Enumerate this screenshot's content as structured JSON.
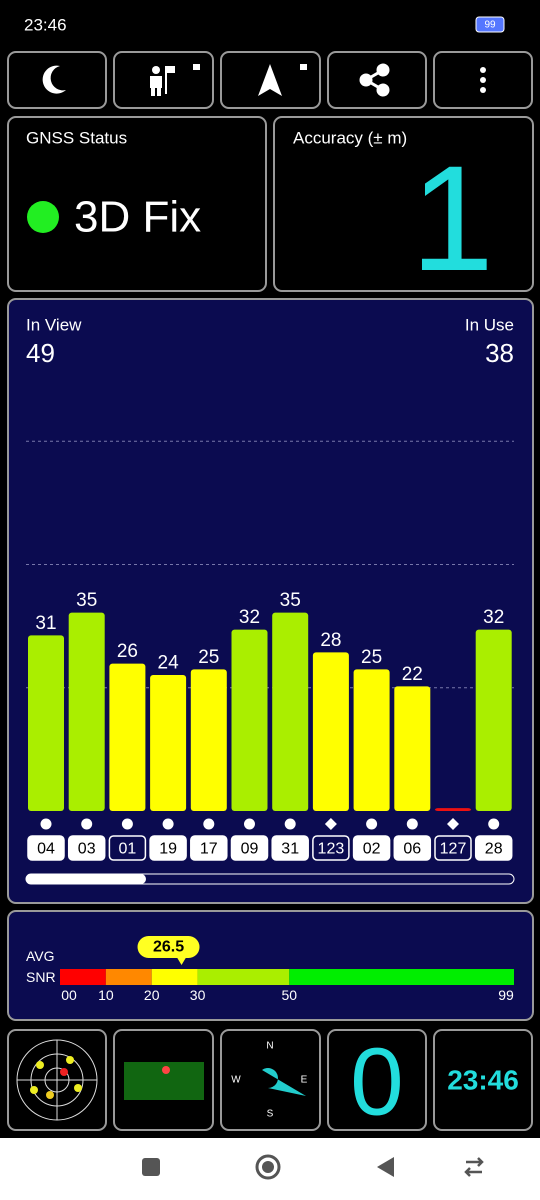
{
  "status_bar": {
    "time": "23:46",
    "battery": "99"
  },
  "gnss_status": {
    "title": "GNSS Status",
    "value": "3D Fix"
  },
  "accuracy": {
    "title": "Accuracy (± m)",
    "value": "1"
  },
  "chart_data": {
    "type": "bar",
    "in_view_label": "In View",
    "in_view": 49,
    "in_use_label": "In Use",
    "in_use": 38,
    "categories": [
      "04",
      "03",
      "01",
      "19",
      "17",
      "09",
      "31",
      "123",
      "02",
      "06",
      "127",
      "28"
    ],
    "values": [
      31,
      35,
      26,
      24,
      25,
      32,
      35,
      28,
      25,
      22,
      0.5,
      32
    ],
    "value_labels": [
      "31",
      "35",
      "26",
      "24",
      "25",
      "32",
      "35",
      "28",
      "25",
      "22",
      null,
      "32"
    ],
    "colors": [
      "#aaee00",
      "#aaee00",
      "#ffff00",
      "#ffff00",
      "#ffff00",
      "#aaee00",
      "#aaee00",
      "#ffff00",
      "#ffff00",
      "#ffff00",
      "#ee1111",
      "#aaee00"
    ],
    "markers": [
      "circle",
      "circle",
      "circle",
      "circle",
      "circle",
      "circle",
      "circle",
      "diamond",
      "circle",
      "circle",
      "diamond",
      "circle"
    ],
    "used": [
      true,
      true,
      false,
      true,
      true,
      true,
      true,
      false,
      true,
      true,
      false,
      true
    ],
    "ylim": [
      0,
      87
    ],
    "gridlines": [
      21.75,
      43.5,
      65.25
    ]
  },
  "snr": {
    "label_top": "AVG",
    "label_bottom": "SNR",
    "value": 26.5,
    "xlim": [
      0,
      99
    ],
    "ticks": [
      {
        "value": 0,
        "label": "00"
      },
      10,
      20,
      30,
      50,
      99
    ],
    "segment_colors": [
      "#ff0000",
      "#ff8800",
      "#ffff00",
      "#aaee00",
      "#00ee00"
    ]
  },
  "compass": {
    "n": "N",
    "e": "E",
    "s": "S",
    "w": "W"
  },
  "speed": "0",
  "clock": "23:46"
}
